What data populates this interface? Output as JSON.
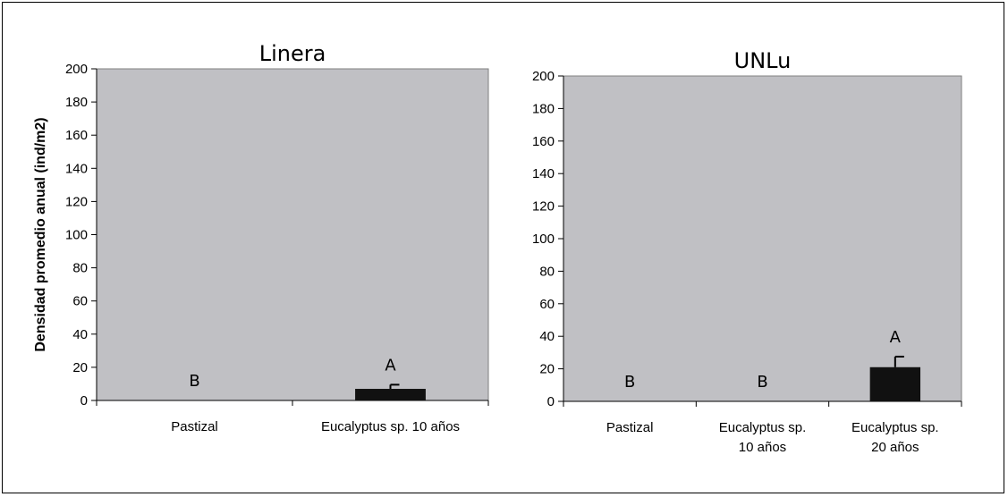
{
  "chart_data": [
    {
      "type": "bar",
      "title": "Linera",
      "ylabel": "Densidad promedio anual (ind/m2)",
      "xlabel": "",
      "ylim": [
        0,
        200
      ],
      "yticks": [
        0,
        20,
        40,
        60,
        80,
        100,
        120,
        140,
        160,
        180,
        200
      ],
      "categories": [
        [
          "Pastizal"
        ],
        [
          "Eucalyptus sp. 10 años"
        ]
      ],
      "values": [
        0,
        7
      ],
      "errors": [
        0,
        2.5
      ],
      "significance": [
        "B",
        "A"
      ],
      "grid": false,
      "colors": {
        "plot_bg": "#c0c0c4",
        "bar": "#111111"
      }
    },
    {
      "type": "bar",
      "title": "UNLu",
      "ylabel": "",
      "xlabel": "",
      "ylim": [
        0,
        200
      ],
      "yticks": [
        0,
        20,
        40,
        60,
        80,
        100,
        120,
        140,
        160,
        180,
        200
      ],
      "categories": [
        [
          "Pastizal"
        ],
        [
          "Eucalyptus sp.",
          "10 años"
        ],
        [
          "Eucalyptus sp.",
          "20 años"
        ]
      ],
      "values": [
        0,
        0,
        21
      ],
      "errors": [
        0,
        0,
        6.5
      ],
      "significance": [
        "B",
        "B",
        "A"
      ],
      "grid": false,
      "colors": {
        "plot_bg": "#c0c0c4",
        "bar": "#111111"
      }
    }
  ]
}
